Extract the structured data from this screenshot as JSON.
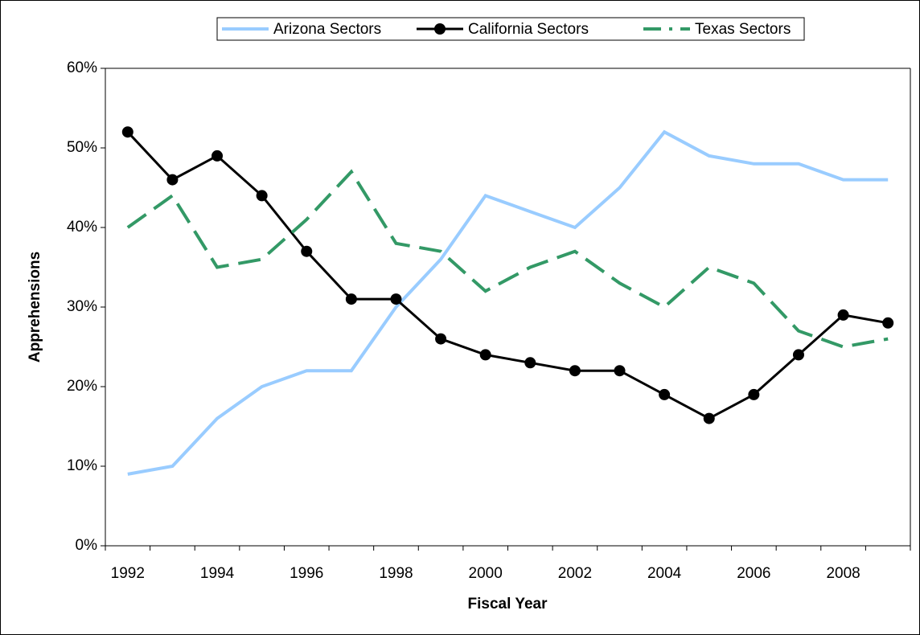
{
  "chart_data": {
    "type": "line",
    "x_label": "Fiscal Year",
    "y_label": "Apprehensions",
    "categories": [
      "1992",
      null,
      "1994",
      null,
      "1996",
      null,
      "1998",
      null,
      "2000",
      null,
      "2002",
      null,
      "2004",
      null,
      "2006",
      null,
      "2008",
      null
    ],
    "series": [
      {
        "name": "Arizona Sectors",
        "color": "#99ccff",
        "style": "solid",
        "values": [
          9,
          10,
          16,
          20,
          22,
          22,
          30,
          36,
          44,
          42,
          40,
          45,
          52,
          49,
          48,
          48,
          46,
          46
        ]
      },
      {
        "name": "California Sectors",
        "color": "#000000",
        "style": "marker",
        "values": [
          52,
          46,
          49,
          44,
          37,
          31,
          31,
          26,
          24,
          23,
          22,
          22,
          19,
          16,
          19,
          24,
          29,
          28
        ]
      },
      {
        "name": "Texas Sectors",
        "color": "#339966",
        "style": "dashed",
        "values": [
          40,
          44,
          35,
          36,
          41,
          47,
          38,
          37,
          32,
          35,
          37,
          33,
          30,
          35,
          33,
          27,
          25,
          26
        ]
      }
    ],
    "ylim": [
      0,
      60
    ],
    "yticks": [
      {
        "value": 0,
        "label": "0%"
      },
      {
        "value": 10,
        "label": "10%"
      },
      {
        "value": 20,
        "label": "20%"
      },
      {
        "value": 30,
        "label": "30%"
      },
      {
        "value": 40,
        "label": "40%"
      },
      {
        "value": 50,
        "label": "50%"
      },
      {
        "value": 60,
        "label": "60%"
      }
    ],
    "legend": "top"
  }
}
